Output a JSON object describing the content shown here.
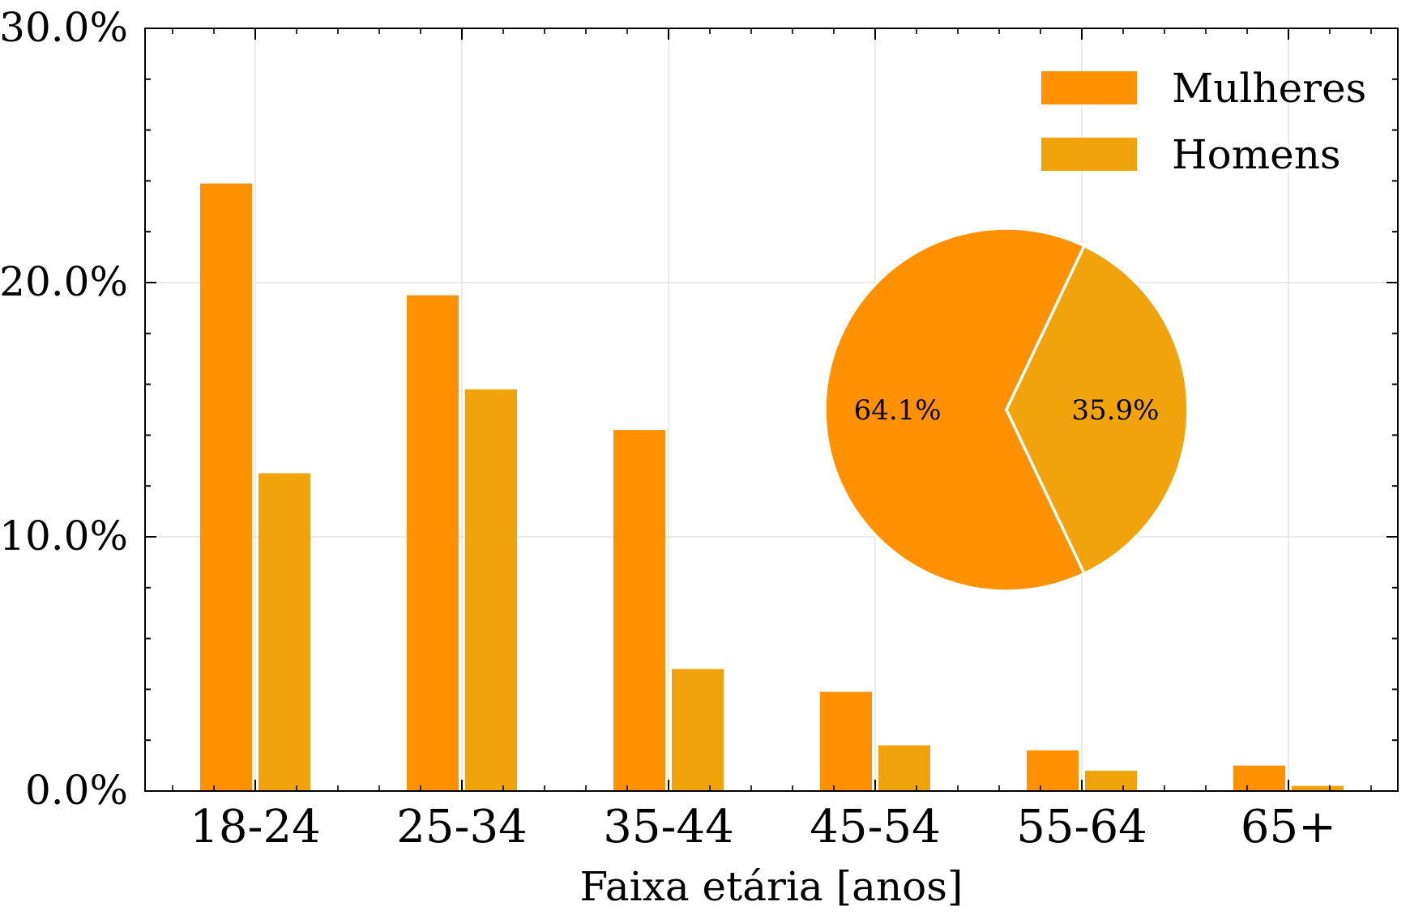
{
  "chart_data": {
    "type": "bar",
    "xlabel": "Faixa etária [anos]",
    "ylabel": "",
    "ylim": [
      0,
      30
    ],
    "y_ticks": [
      {
        "value": 0,
        "label": "0.0%"
      },
      {
        "value": 10,
        "label": "10.0%"
      },
      {
        "value": 20,
        "label": "20.0%"
      },
      {
        "value": 30,
        "label": "30.0%"
      }
    ],
    "categories": [
      "18-24",
      "25-34",
      "35-44",
      "45-54",
      "55-64",
      "65+"
    ],
    "series": [
      {
        "name": "Mulheres",
        "color": "#ff9000",
        "values": [
          23.9,
          19.5,
          14.2,
          3.9,
          1.6,
          1.0
        ]
      },
      {
        "name": "Homens",
        "color": "#f0a30a",
        "values": [
          12.5,
          15.8,
          4.8,
          1.8,
          0.8,
          0.2
        ]
      }
    ],
    "grid": true,
    "legend_position": "top-right",
    "inset_pie": {
      "slices": [
        {
          "series": "Mulheres",
          "value": 64.1,
          "label": "64.1%",
          "color": "#ff9000"
        },
        {
          "series": "Homens",
          "value": 35.9,
          "label": "35.9%",
          "color": "#f0a30a"
        }
      ]
    }
  }
}
